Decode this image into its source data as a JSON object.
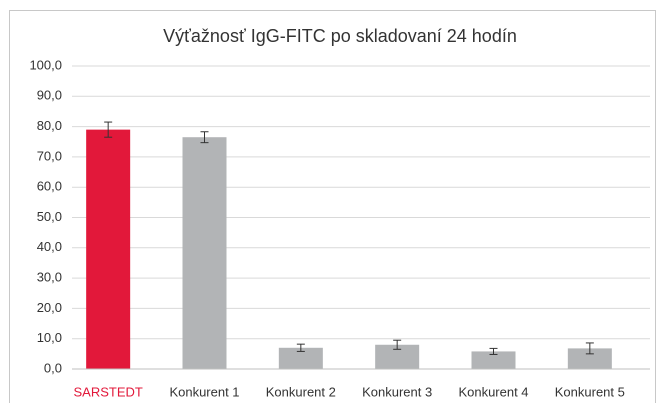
{
  "chart_data": {
    "type": "bar",
    "title": "Výťažnosť IgG-FITC po skladovaní 24 hodín",
    "categories": [
      "SARSTEDT",
      "Konkurent 1",
      "Konkurent 2",
      "Konkurent 3",
      "Konkurent 4",
      "Konkurent 5"
    ],
    "values": [
      79.0,
      76.5,
      7.0,
      8.0,
      5.8,
      6.8
    ],
    "errors": [
      2.5,
      1.8,
      1.2,
      1.5,
      1.0,
      1.8
    ],
    "colors": [
      "#e2183a",
      "#b2b4b6",
      "#b2b4b6",
      "#b2b4b6",
      "#b2b4b6",
      "#b2b4b6"
    ],
    "label_colors": [
      "#e2183a",
      "#333333",
      "#333333",
      "#333333",
      "#333333",
      "#333333"
    ],
    "ylim": [
      0,
      100
    ],
    "yticks": [
      {
        "value": 0,
        "label": "0,0"
      },
      {
        "value": 10,
        "label": "10,0"
      },
      {
        "value": 20,
        "label": "20,0"
      },
      {
        "value": 30,
        "label": "30,0"
      },
      {
        "value": 40,
        "label": "40,0"
      },
      {
        "value": 50,
        "label": "50,0"
      },
      {
        "value": 60,
        "label": "60,0"
      },
      {
        "value": 70,
        "label": "70,0"
      },
      {
        "value": 80,
        "label": "80,0"
      },
      {
        "value": 90,
        "label": "90,0"
      },
      {
        "value": 100,
        "label": "100,0"
      }
    ],
    "grid": true
  }
}
